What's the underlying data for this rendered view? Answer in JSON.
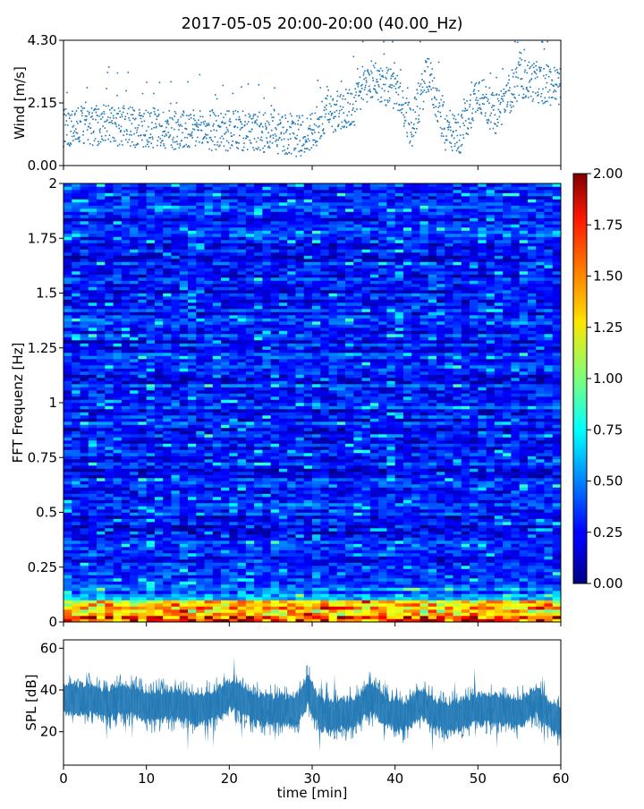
{
  "title": "2017-05-05 20:00-20:00 (40.00_Hz)",
  "colors": {
    "wind": "#1f77b4",
    "spl": "#1f77b4"
  },
  "chart_data": [
    {
      "id": "wind",
      "type": "scatter",
      "ylabel": "Wind [m/s]",
      "ylim": [
        0,
        4.3
      ],
      "yticks": [
        "0.00",
        "2.15",
        "4.30"
      ],
      "ytick_values": [
        0,
        2.15,
        4.3
      ],
      "xlim": [
        0,
        60
      ],
      "trend": {
        "x": [
          0,
          5,
          10,
          15,
          20,
          25,
          28,
          30,
          32,
          35,
          37,
          40,
          42,
          44,
          46,
          48,
          50,
          52,
          55,
          58,
          60
        ],
        "y": [
          1.3,
          1.4,
          1.3,
          1.2,
          1.2,
          1.1,
          1.0,
          1.1,
          1.8,
          2.0,
          3.0,
          2.6,
          1.3,
          3.2,
          1.2,
          1.1,
          2.6,
          1.7,
          3.0,
          2.8,
          2.7
        ]
      }
    },
    {
      "id": "spectrogram",
      "type": "heatmap",
      "ylabel": "FFT Frequenz [Hz]",
      "ylim": [
        0,
        2
      ],
      "yticks": [
        "0",
        "0.25",
        "0.5",
        "0.75",
        "1",
        "1.25",
        "1.5",
        "1.75",
        "2"
      ],
      "ytick_values": [
        0,
        0.25,
        0.5,
        0.75,
        1,
        1.25,
        1.5,
        1.75,
        2
      ],
      "xlim": [
        0,
        60
      ],
      "colorbar": {
        "range": [
          0,
          2
        ],
        "ticks": [
          "0.00",
          "0.25",
          "0.50",
          "0.75",
          "1.00",
          "1.25",
          "1.50",
          "1.75",
          "2.00"
        ],
        "tick_values": [
          0,
          0.25,
          0.5,
          0.75,
          1,
          1.25,
          1.5,
          1.75,
          2
        ],
        "colormap": "jet"
      }
    },
    {
      "id": "spl",
      "type": "area",
      "ylabel": "SPL [dB]",
      "ylim": [
        4,
        64
      ],
      "yticks": [
        "20",
        "40",
        "60"
      ],
      "ytick_values": [
        20,
        40,
        60
      ],
      "xlabel": "time [min]",
      "xlim": [
        0,
        60
      ],
      "xticks": [
        "0",
        "10",
        "20",
        "30",
        "40",
        "50",
        "60"
      ],
      "xtick_values": [
        0,
        10,
        20,
        30,
        40,
        50,
        60
      ],
      "envelope": {
        "x": [
          0,
          2,
          5,
          8,
          10,
          13,
          16,
          18,
          20,
          21,
          23,
          26,
          28,
          29.5,
          31,
          33,
          35,
          37,
          39,
          41,
          43,
          45,
          47,
          50,
          53,
          55,
          57,
          58,
          60
        ],
        "mid": [
          35,
          36,
          34,
          35,
          32,
          33,
          31,
          32,
          38,
          37,
          31,
          30,
          30,
          40,
          28,
          28,
          29,
          36,
          30,
          27,
          34,
          28,
          27,
          31,
          30,
          29,
          35,
          30,
          25
        ]
      }
    }
  ]
}
